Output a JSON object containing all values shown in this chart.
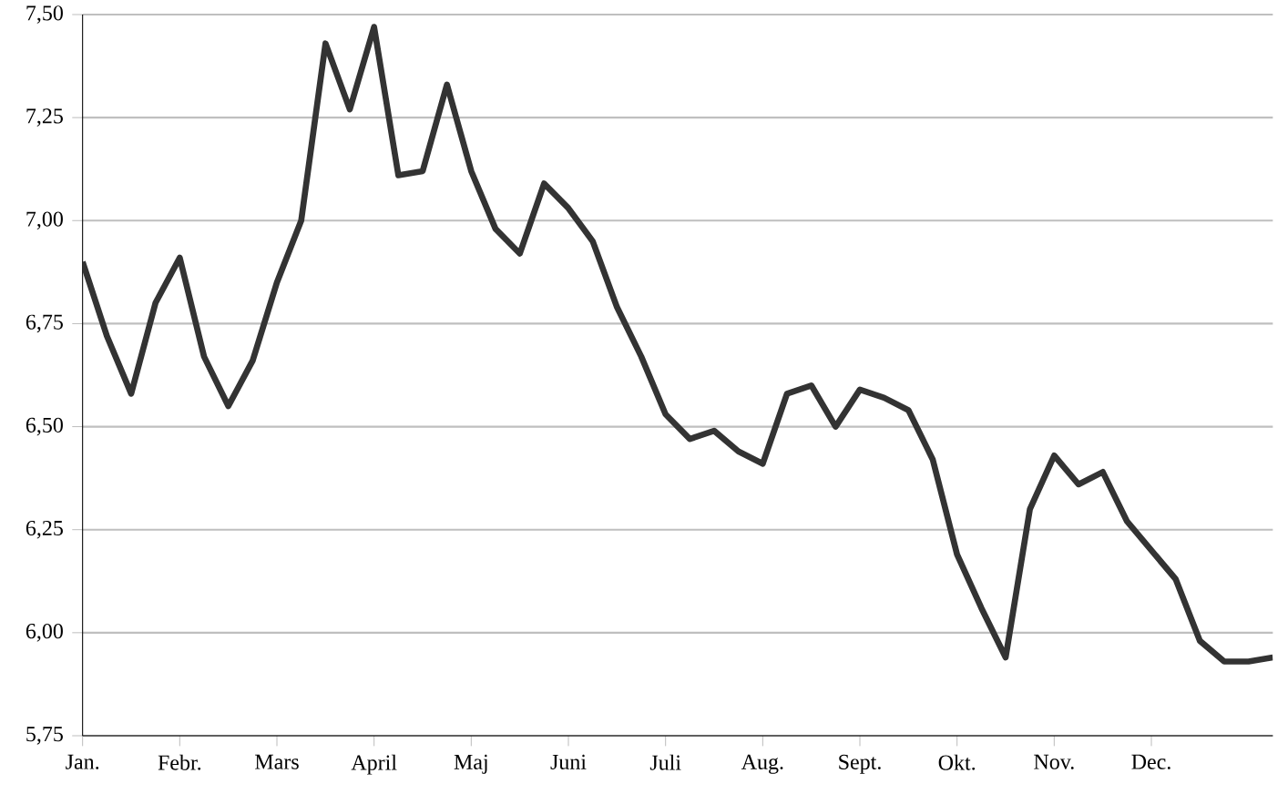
{
  "chart_data": {
    "type": "line",
    "grid": "y",
    "ylim": [
      5.75,
      7.5
    ],
    "categories": [
      "Jan.",
      null,
      null,
      null,
      "Febr.",
      null,
      null,
      null,
      "Mars",
      null,
      null,
      null,
      "April",
      null,
      null,
      null,
      "Maj",
      null,
      null,
      null,
      "Juni",
      null,
      null,
      null,
      "Juli",
      null,
      null,
      null,
      "Aug.",
      null,
      null,
      null,
      "Sept.",
      null,
      null,
      null,
      "Okt.",
      null,
      null,
      null,
      "Nov.",
      null,
      null,
      null,
      "Dec.",
      null,
      null,
      null,
      null,
      null
    ],
    "yticks": [
      {
        "value": 5.75,
        "label": "5,75"
      },
      {
        "value": 6.0,
        "label": "6,00"
      },
      {
        "value": 6.25,
        "label": "6,25"
      },
      {
        "value": 6.5,
        "label": "6,50"
      },
      {
        "value": 6.75,
        "label": "6,75"
      },
      {
        "value": 7.0,
        "label": "7,00"
      },
      {
        "value": 7.25,
        "label": "7,25"
      },
      {
        "value": 7.5,
        "label": "7,50"
      }
    ],
    "series": [
      {
        "color": "#333333",
        "values": [
          6.9,
          6.72,
          6.58,
          6.8,
          6.91,
          6.67,
          6.55,
          6.66,
          6.85,
          7.0,
          7.43,
          7.27,
          7.47,
          7.11,
          7.12,
          7.33,
          7.12,
          6.98,
          6.92,
          7.09,
          7.03,
          6.95,
          6.79,
          6.67,
          6.53,
          6.47,
          6.49,
          6.44,
          6.41,
          6.58,
          6.6,
          6.5,
          6.59,
          6.57,
          6.54,
          6.42,
          6.19,
          6.06,
          5.94,
          6.3,
          6.43,
          6.36,
          6.39,
          6.27,
          6.2,
          6.13,
          5.98,
          5.93,
          5.93,
          5.94
        ]
      }
    ]
  }
}
